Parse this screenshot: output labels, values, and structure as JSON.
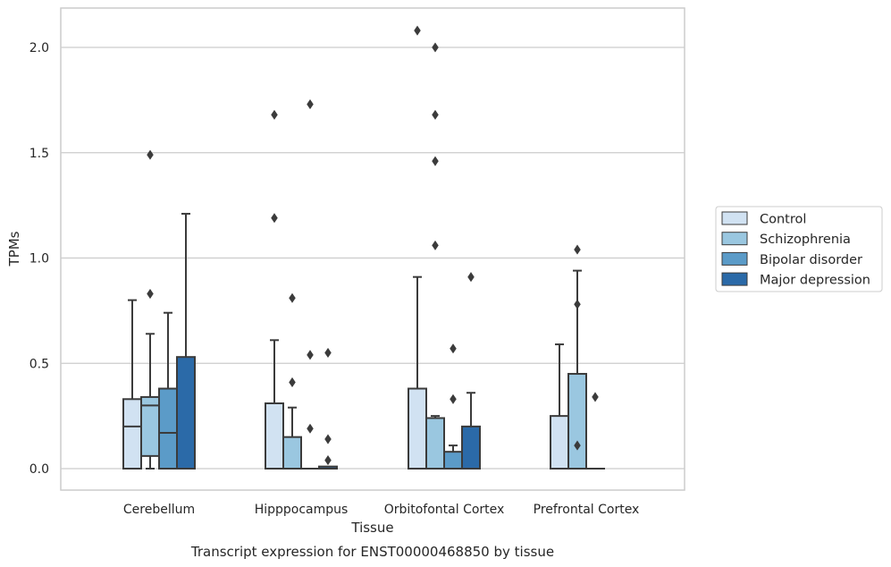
{
  "chart_data": {
    "type": "box",
    "caption": "Transcript expression for ENST00000468850 by tissue",
    "xlabel": "Tissue",
    "ylabel": "TPMs",
    "ylim": [
      -0.1,
      2.2
    ],
    "yticks": [
      0.0,
      0.5,
      1.0,
      1.5,
      2.0
    ],
    "ytick_labels": [
      "0.0",
      "0.5",
      "1.0",
      "1.5",
      "2.0"
    ],
    "grid": "horizontal",
    "legend_position": "right",
    "categories": [
      "Cerebellum",
      "Hipppocampus",
      "Orbitofontal Cortex",
      "Prefrontal Cortex"
    ],
    "series": [
      {
        "name": "Control",
        "color": "#d1e2f2",
        "boxes": [
          {
            "q1": 0.0,
            "median": 0.2,
            "q3": 0.33,
            "whisker_low": 0.0,
            "whisker_high": 0.8,
            "outliers": []
          },
          {
            "q1": 0.0,
            "median": 0.0,
            "q3": 0.31,
            "whisker_low": 0.0,
            "whisker_high": 0.61,
            "outliers": [
              1.19,
              1.68
            ]
          },
          {
            "q1": 0.0,
            "median": 0.0,
            "q3": 0.38,
            "whisker_low": 0.0,
            "whisker_high": 0.91,
            "outliers": [
              2.08
            ]
          },
          {
            "q1": 0.0,
            "median": 0.0,
            "q3": 0.25,
            "whisker_low": 0.0,
            "whisker_high": 0.59,
            "outliers": []
          }
        ]
      },
      {
        "name": "Schizophrenia",
        "color": "#9ac7e0",
        "boxes": [
          {
            "q1": 0.06,
            "median": 0.3,
            "q3": 0.34,
            "whisker_low": 0.0,
            "whisker_high": 0.64,
            "outliers": [
              0.83,
              1.49
            ]
          },
          {
            "q1": 0.0,
            "median": 0.0,
            "q3": 0.15,
            "whisker_low": 0.0,
            "whisker_high": 0.29,
            "outliers": [
              0.41,
              0.81
            ]
          },
          {
            "q1": 0.0,
            "median": 0.0,
            "q3": 0.24,
            "whisker_low": 0.0,
            "whisker_high": 0.25,
            "outliers": [
              1.06,
              1.46,
              1.68,
              2.0
            ]
          },
          {
            "q1": 0.0,
            "median": 0.0,
            "q3": 0.45,
            "whisker_low": 0.0,
            "whisker_high": 0.94,
            "outliers": [
              0.11,
              0.78,
              1.04
            ]
          }
        ]
      },
      {
        "name": "Bipolar disorder",
        "color": "#5b9bc8",
        "boxes": [
          {
            "q1": 0.0,
            "median": 0.17,
            "q3": 0.38,
            "whisker_low": 0.0,
            "whisker_high": 0.74,
            "outliers": []
          },
          {
            "q1": 0.0,
            "median": 0.0,
            "q3": 0.0,
            "whisker_low": 0.0,
            "whisker_high": 0.0,
            "outliers": [
              0.19,
              0.54,
              1.73
            ]
          },
          {
            "q1": 0.0,
            "median": 0.0,
            "q3": 0.08,
            "whisker_low": 0.0,
            "whisker_high": 0.11,
            "outliers": [
              0.33,
              0.57
            ]
          },
          {
            "q1": 0.0,
            "median": 0.0,
            "q3": 0.0,
            "whisker_low": 0.0,
            "whisker_high": 0.0,
            "outliers": [
              0.34
            ]
          }
        ]
      },
      {
        "name": "Major depression",
        "color": "#2b6aa8",
        "boxes": [
          {
            "q1": 0.0,
            "median": 0.0,
            "q3": 0.53,
            "whisker_low": 0.0,
            "whisker_high": 1.21,
            "outliers": []
          },
          {
            "q1": 0.0,
            "median": 0.0,
            "q3": 0.01,
            "whisker_low": 0.0,
            "whisker_high": 0.01,
            "outliers": [
              0.04,
              0.14,
              0.55
            ]
          },
          {
            "q1": 0.0,
            "median": 0.0,
            "q3": 0.2,
            "whisker_low": 0.0,
            "whisker_high": 0.36,
            "outliers": [
              0.91
            ]
          },
          null
        ]
      }
    ]
  }
}
